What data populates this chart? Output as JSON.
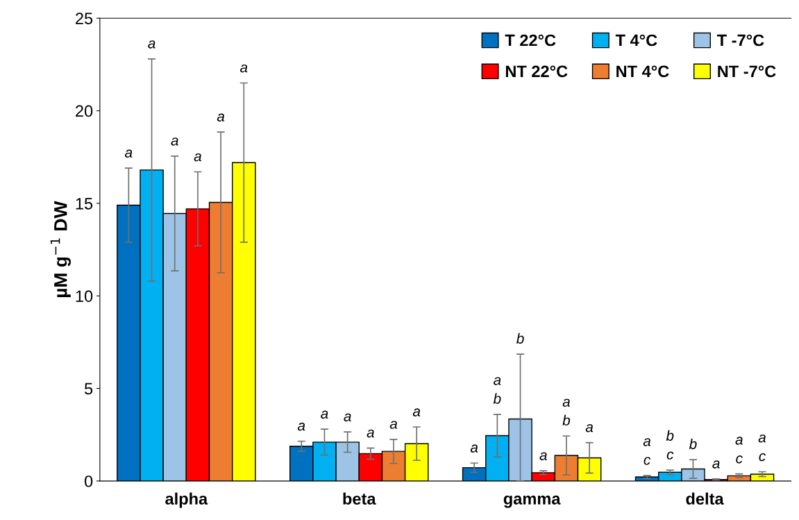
{
  "chart_data": {
    "type": "bar",
    "ylabel": "µM g$^{−1}$ DW",
    "categories": [
      "alpha",
      "beta",
      "gamma",
      "delta"
    ],
    "ylim": [
      0,
      25
    ],
    "yticks": [
      0,
      5,
      10,
      15,
      20,
      25
    ],
    "grid": false,
    "legend": "top right",
    "series": [
      {
        "name": "T 22°C",
        "color": "#0070c0",
        "values": [
          14.9,
          1.88,
          0.72,
          0.22
        ],
        "errors": [
          2.0,
          0.27,
          0.25,
          0.08
        ]
      },
      {
        "name": "T 4°C",
        "color": "#00b0f0",
        "values": [
          16.8,
          2.1,
          2.45,
          0.47
        ],
        "errors": [
          6.0,
          0.7,
          1.15,
          0.12
        ]
      },
      {
        "name": "T -7°C",
        "color": "#9dc3e6",
        "values": [
          14.45,
          2.1,
          3.35,
          0.65
        ],
        "errors": [
          3.1,
          0.55,
          [
            0.0,
            6.85
          ],
          0.5
        ]
      },
      {
        "name": "NT 22°C",
        "color": "#ff0000",
        "values": [
          14.7,
          1.48,
          0.45,
          0.08
        ],
        "errors": [
          2.0,
          0.3,
          0.1,
          0.03
        ]
      },
      {
        "name": "NT 4°C",
        "color": "#ed7d31",
        "values": [
          15.05,
          1.6,
          1.38,
          0.28
        ],
        "errors": [
          3.8,
          0.65,
          1.05,
          0.1
        ]
      },
      {
        "name": "NT -7°C",
        "color": "#ffff00",
        "values": [
          17.2,
          2.02,
          1.25,
          0.37
        ],
        "errors": [
          4.3,
          0.9,
          0.82,
          0.13
        ]
      }
    ],
    "annotations": [
      "a",
      "a",
      "a",
      "a",
      "a",
      "a",
      "a",
      "a",
      "a",
      "a",
      "a",
      "a",
      "a",
      "a\nb",
      "b",
      "a",
      "a\nb",
      "a",
      "a\nc",
      "b\nc",
      "b",
      "a",
      "a\nc",
      "a\nc"
    ]
  }
}
